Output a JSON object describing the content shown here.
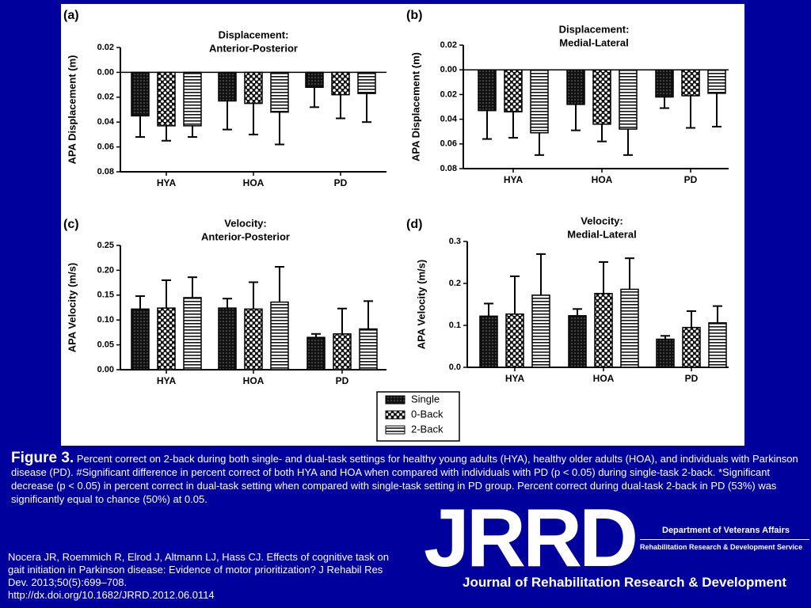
{
  "chart_data": [
    {
      "type": "bar",
      "label": "(a)",
      "title": [
        "Displacement:",
        "Anterior-Posterior"
      ],
      "y_label": "APA Displacement (m)",
      "categories": [
        "HYA",
        "HOA",
        "PD"
      ],
      "y_inverted": true,
      "ylim": [
        -0.02,
        0.08
      ],
      "yticks": [
        {
          "value": -0.02,
          "label": "0.02"
        },
        {
          "value": 0,
          "label": "0.00"
        },
        0.02,
        0.04,
        0.06,
        0.08
      ],
      "series": [
        {
          "values": [
            0.035,
            0.023,
            0.012
          ],
          "errors": [
            0.017,
            0.023,
            0.016
          ]
        },
        {
          "values": [
            0.043,
            0.025,
            0.018
          ],
          "errors": [
            0.012,
            0.025,
            0.019
          ]
        },
        {
          "values": [
            0.043,
            0.032,
            0.017
          ],
          "errors": [
            0.009,
            0.026,
            0.023
          ]
        }
      ]
    },
    {
      "type": "bar",
      "label": "(b)",
      "title": [
        "Displacement:",
        "Medial-Lateral"
      ],
      "y_label": "APA Displacement (m)",
      "categories": [
        "HYA",
        "HOA",
        "PD"
      ],
      "y_inverted": true,
      "ylim": [
        -0.02,
        0.08
      ],
      "yticks": [
        {
          "value": -0.02,
          "label": "0.02"
        },
        {
          "value": 0,
          "label": "0.00"
        },
        0.02,
        0.04,
        0.06,
        0.08
      ],
      "series": [
        {
          "values": [
            0.033,
            0.028,
            0.022
          ],
          "errors": [
            0.023,
            0.021,
            0.009
          ]
        },
        {
          "values": [
            0.034,
            0.044,
            0.021
          ],
          "errors": [
            0.021,
            0.014,
            0.026
          ]
        },
        {
          "values": [
            0.051,
            0.048,
            0.019
          ],
          "errors": [
            0.018,
            0.021,
            0.027
          ]
        }
      ]
    },
    {
      "type": "bar",
      "label": "(c)",
      "title": [
        "Velocity:",
        "Anterior-Posterior"
      ],
      "y_label": "APA Velocity (m/s)",
      "categories": [
        "HYA",
        "HOA",
        "PD"
      ],
      "y_inverted": false,
      "ylim": [
        0,
        0.25
      ],
      "yticks": [
        {
          "value": 0,
          "label": "0.00"
        },
        0.05,
        {
          "value": 0.1,
          "label": "0.10"
        },
        0.15,
        {
          "value": 0.2,
          "label": "0.20"
        },
        0.25
      ],
      "series": [
        {
          "values": [
            0.122,
            0.124,
            0.065
          ],
          "errors": [
            0.026,
            0.019,
            0.007
          ]
        },
        {
          "values": [
            0.124,
            0.122,
            0.072
          ],
          "errors": [
            0.056,
            0.054,
            0.051
          ]
        },
        {
          "values": [
            0.145,
            0.136,
            0.082
          ],
          "errors": [
            0.041,
            0.071,
            0.056
          ]
        }
      ]
    },
    {
      "type": "bar",
      "label": "(d)",
      "title": [
        "Velocity:",
        "Medial-Lateral"
      ],
      "y_label": "APA Velocity (m/s)",
      "categories": [
        "HYA",
        "HOA",
        "PD"
      ],
      "y_inverted": false,
      "ylim": [
        0,
        0.3
      ],
      "yticks": [
        {
          "value": 0,
          "label": "0.0"
        },
        0.1,
        0.2,
        0.3
      ],
      "series": [
        {
          "values": [
            0.122,
            0.123,
            0.067
          ],
          "errors": [
            0.03,
            0.016,
            0.008
          ]
        },
        {
          "values": [
            0.127,
            0.176,
            0.095
          ],
          "errors": [
            0.09,
            0.075,
            0.039
          ]
        },
        {
          "values": [
            0.172,
            0.186,
            0.106
          ],
          "errors": [
            0.098,
            0.074,
            0.04
          ]
        }
      ]
    }
  ],
  "legend": [
    {
      "name": "Single",
      "pattern": "dense"
    },
    {
      "name": "0-Back",
      "pattern": "dots"
    },
    {
      "name": "2-Back",
      "pattern": "stripes"
    }
  ],
  "caption": {
    "heading": "Figure 3.",
    "text": "Percent correct on 2-back during both single- and dual-task settings for healthy young adults (HYA), healthy older adults (HOA), and individuals with Parkinson disease (PD). #Significant difference in percent correct of both HYA and HOA when compared with individuals with PD (p < 0.05) during single-task 2-back. *Significant decrease (p < 0.05) in percent correct in dual-task setting when compared with single-task setting in PD group. Percent correct during dual-task 2-back in PD (53%) was significantly equal to chance (50%) at 0.05."
  },
  "citation": [
    "Nocera JR, Roemmich R, Elrod J, Altmann LJ, Hass CJ. Effects of cognitive task on gait initiation in Parkinson disease: Evidence of motor prioritization? J Rehabil Res Dev. 2013;50(5):699–708.",
    "http://dx.doi.org/10.1682/JRRD.2012.06.0114"
  ],
  "logo": {
    "mark": "JRRD",
    "department": "Department of Veterans Affairs",
    "service": "Rehabilitation Research & Development Service",
    "journal": "Journal of Rehabilitation Research & Development"
  }
}
